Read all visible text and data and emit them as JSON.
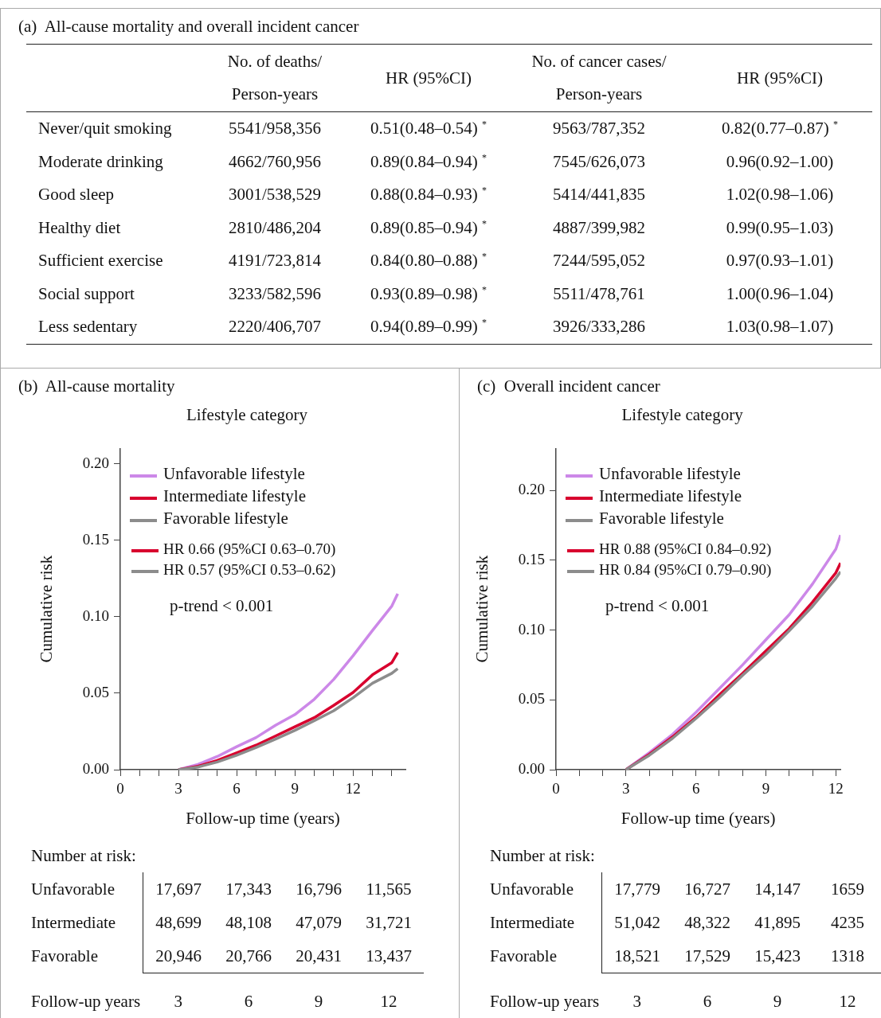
{
  "chart_data": [
    {
      "type": "other",
      "title": "(a)  All-cause mortality and overall incident cancer",
      "annotations": [
        "No. of deaths/ Person-years",
        "HR (95%CI)",
        "No. of cancer cases/ Person-years",
        "HR (95%CI)",
        "Never/quit smoking",
        "5541/958,356",
        "0.51(0.48–0.54) $^{*}$",
        "9563/787,352",
        "0.82(0.77–0.87) $^{*}$",
        "Moderate drinking",
        "4662/760,956",
        "0.89(0.84–0.94) $^{*}$",
        "7545/626,073",
        "0.96(0.92–1.00)",
        "Good sleep",
        "3001/538,529",
        "0.88(0.84–0.93) $^{*}$",
        "5414/441,835",
        "1.02(0.98–1.06)",
        "Healthy diet",
        "2810/486,204",
        "0.89(0.85–0.94) $^{*}$",
        "4887/399,982",
        "0.99(0.95–1.03)",
        "Sufficient exercise",
        "4191/723,814",
        "0.84(0.80–0.88) $^{*}$",
        "7244/595,052",
        "0.97(0.93–1.01)",
        "Social support",
        "3233/582,596",
        "0.93(0.89–0.98) $^{*}$",
        "5511/478,761",
        "1.00(0.96–1.04)",
        "Less sedentary",
        "2220/406,707",
        "0.94(0.89–0.99) $^{*}$",
        "3926/333,286",
        "1.03(0.98–1.07)"
      ]
    },
    {
      "type": "line",
      "title": "(b)  All-cause mortality",
      "legend_title": "Lifestyle category",
      "xlabel": "Follow-up time (years)",
      "ylabel": "Cumulative risk",
      "legend": "top left",
      "marker": "none",
      "x": [
        3,
        4,
        5,
        6,
        7,
        8,
        9,
        10,
        11,
        12,
        13,
        14,
        14.3
      ],
      "series": [
        {
          "name": "Unfavorable lifestyle",
          "color": "#cc88e8",
          "values": [
            0,
            0.0034,
            0.0086,
            0.015,
            0.021,
            0.029,
            0.036,
            0.046,
            0.059,
            0.0745,
            0.091,
            0.107,
            0.115
          ]
        },
        {
          "name": "Intermediate lifestyle",
          "color": "#d8002e",
          "values": [
            0,
            0.0022,
            0.006,
            0.011,
            0.016,
            0.022,
            0.028,
            0.034,
            0.042,
            0.0505,
            0.062,
            0.07,
            0.0765
          ]
        },
        {
          "name": "Favorable lifestyle",
          "color": "#8c8c8c",
          "values": [
            0,
            0.0017,
            0.005,
            0.0094,
            0.0145,
            0.02,
            0.0257,
            0.032,
            0.0385,
            0.047,
            0.0565,
            0.063,
            0.066
          ]
        }
      ],
      "xlim": [
        0,
        14.7
      ],
      "xticks": [
        0,
        {
          "value": 1,
          "label": null
        },
        {
          "value": 2,
          "label": null
        },
        3,
        {
          "value": 4,
          "label": null
        },
        {
          "value": 5,
          "label": null
        },
        6,
        {
          "value": 7,
          "label": null
        },
        {
          "value": 8,
          "label": null
        },
        9,
        {
          "value": 10,
          "label": null
        },
        {
          "value": 11,
          "label": null
        },
        12,
        {
          "value": 13,
          "label": null
        },
        {
          "value": 14,
          "label": null
        }
      ],
      "ylim": [
        0,
        0.21
      ],
      "yticks": [
        {
          "value": 0,
          "label": "0.00"
        },
        {
          "value": 0.05,
          "label": "0.05"
        },
        {
          "value": 0.1,
          "label": "0.10"
        },
        {
          "value": 0.15,
          "label": "0.15"
        },
        {
          "value": 0.2,
          "label": "0.20"
        }
      ],
      "annotations": [
        "HR 0.66 (95%CI 0.63–0.70)",
        "HR 0.57 (95%CI 0.53–0.62)",
        "p-trend < 0.001",
        "Number at risk:",
        "Unfavorable",
        "17,697",
        "17,343",
        "16,796",
        "11,565",
        "Intermediate",
        "48,699",
        "48,108",
        "47,079",
        "31,721",
        "Favorable",
        "20,946",
        "20,766",
        "20,431",
        "13,437",
        "Follow-up years",
        "3",
        "6",
        "9",
        "12"
      ]
    },
    {
      "type": "line",
      "title": "(c)  Overall incident cancer",
      "legend_title": "Lifestyle category",
      "xlabel": "Follow-up time (years)",
      "ylabel": "Cumulative risk",
      "legend": "top left",
      "marker": "none",
      "x": [
        3,
        4,
        5,
        6,
        7,
        8,
        9,
        10,
        11,
        12,
        12.2
      ],
      "series": [
        {
          "name": "Unfavorable lifestyle",
          "color": "#cc88e8",
          "values": [
            0,
            0.0122,
            0.0253,
            0.041,
            0.058,
            0.075,
            0.093,
            0.111,
            0.133,
            0.158,
            0.168
          ]
        },
        {
          "name": "Intermediate lifestyle",
          "color": "#d8002e",
          "values": [
            0,
            0.011,
            0.0235,
            0.0375,
            0.0535,
            0.069,
            0.085,
            0.101,
            0.12,
            0.141,
            0.148
          ]
        },
        {
          "name": "Favorable lifestyle",
          "color": "#8c8c8c",
          "values": [
            0,
            0.0103,
            0.0225,
            0.0366,
            0.0516,
            0.0676,
            0.0826,
            0.0995,
            0.117,
            0.137,
            0.1417
          ]
        }
      ],
      "xlim": [
        0,
        12.2
      ],
      "xticks": [
        0,
        {
          "value": 1,
          "label": null
        },
        {
          "value": 2,
          "label": null
        },
        3,
        {
          "value": 4,
          "label": null
        },
        {
          "value": 5,
          "label": null
        },
        6,
        {
          "value": 7,
          "label": null
        },
        {
          "value": 8,
          "label": null
        },
        9,
        {
          "value": 10,
          "label": null
        },
        {
          "value": 11,
          "label": null
        },
        12
      ],
      "ylim": [
        0,
        0.23
      ],
      "yticks": [
        {
          "value": 0,
          "label": "0.00"
        },
        {
          "value": 0.05,
          "label": "0.05"
        },
        {
          "value": 0.1,
          "label": "0.10"
        },
        {
          "value": 0.15,
          "label": "0.15"
        },
        {
          "value": 0.2,
          "label": "0.20"
        }
      ],
      "annotations": [
        "HR 0.88 (95%CI 0.84–0.92)",
        "HR 0.84 (95%CI 0.79–0.90)",
        "p-trend < 0.001",
        "Number at risk:",
        "Unfavorable",
        "17,779",
        "16,727",
        "14,147",
        "1659",
        "Intermediate",
        "51,042",
        "48,322",
        "41,895",
        "4235",
        "Favorable",
        "18,521",
        "17,529",
        "15,423",
        "1318",
        "Follow-up years",
        "3",
        "6",
        "9",
        "12"
      ]
    }
  ]
}
